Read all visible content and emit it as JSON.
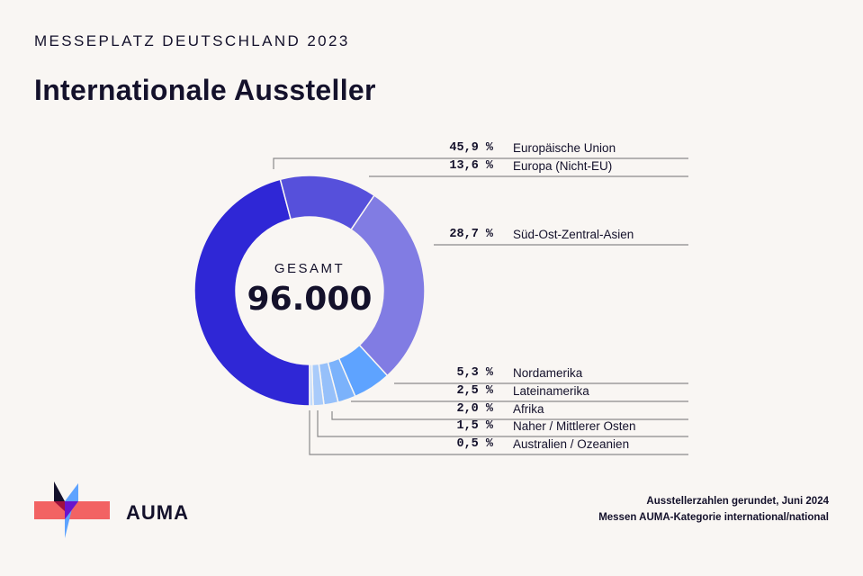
{
  "header": {
    "kicker": "MESSEPLATZ DEUTSCHLAND 2023",
    "title": "Internationale Aussteller"
  },
  "center": {
    "label": "GESAMT",
    "value": "96.000"
  },
  "legend": [
    {
      "pct": "45,9 %",
      "label": "Europäische Union",
      "color": "#2f27d6"
    },
    {
      "pct": "13,6 %",
      "label": "Europa (Nicht-EU)",
      "color": "#5650db"
    },
    {
      "pct": "28,7 %",
      "label": "Süd-Ost-Zentral-Asien",
      "color": "#817ce3"
    },
    {
      "pct": "5,3 %",
      "label": "Nordamerika",
      "color": "#5ea3ff"
    },
    {
      "pct": "2,5 %",
      "label": "Lateinamerika",
      "color": "#7bb2fb"
    },
    {
      "pct": "2,0 %",
      "label": "Afrika",
      "color": "#96c0fa"
    },
    {
      "pct": "1,5 %",
      "label": "Naher / Mittlerer Osten",
      "color": "#a9cbfa"
    },
    {
      "pct": "0,5 %",
      "label": "Australien / Ozeanien",
      "color": "#c3dbfb"
    }
  ],
  "footnote": {
    "line1": "Ausstellerzahlen gerundet, Juni 2024",
    "line2": "Messen AUMA-Kategorie international/national"
  },
  "logo": {
    "text": "AUMA"
  },
  "chart_data": {
    "type": "pie",
    "variant": "donut",
    "title": "Internationale Aussteller",
    "subtitle": "MESSEPLATZ DEUTSCHLAND 2023",
    "center_label": "GESAMT",
    "total": 96000,
    "categories": [
      "Europäische Union",
      "Europa (Nicht-EU)",
      "Süd-Ost-Zentral-Asien",
      "Nordamerika",
      "Lateinamerika",
      "Afrika",
      "Naher / Mittlerer Osten",
      "Australien / Ozeanien"
    ],
    "values": [
      45.9,
      13.6,
      28.7,
      5.3,
      2.5,
      2.0,
      1.5,
      0.5
    ],
    "unit": "%",
    "colors": [
      "#2f27d6",
      "#5650db",
      "#817ce3",
      "#5ea3ff",
      "#7bb2fb",
      "#96c0fa",
      "#a9cbfa",
      "#c3dbfb"
    ],
    "legend_position": "right",
    "notes": [
      "Ausstellerzahlen gerundet, Juni 2024",
      "Messen AUMA-Kategorie international/national"
    ]
  }
}
